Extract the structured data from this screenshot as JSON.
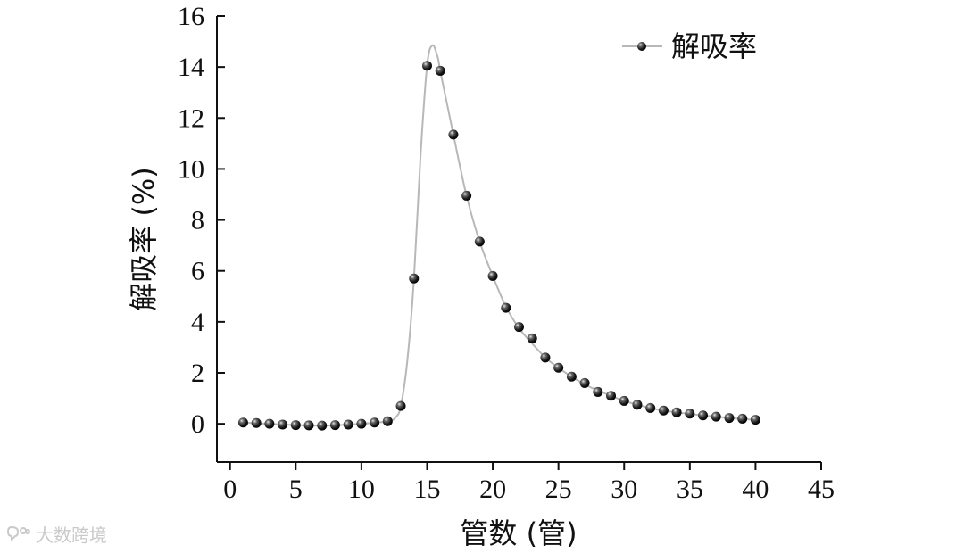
{
  "chart_data": {
    "type": "line",
    "xlabel": "管数 (管)",
    "ylabel": "解吸率 (%)",
    "xlim": [
      -1,
      45
    ],
    "ylim": [
      -1.5,
      16
    ],
    "xticks": [
      0,
      5,
      10,
      15,
      20,
      25,
      30,
      35,
      40,
      45
    ],
    "yticks": [
      0,
      2,
      4,
      6,
      8,
      10,
      12,
      14,
      16
    ],
    "legend_position": "top-right",
    "grid": false,
    "series": [
      {
        "name": "解吸率",
        "marker": "sphere",
        "line_color": "#b8b8b8",
        "marker_color": "#1a1a1a",
        "points": [
          {
            "x": 1,
            "y": 0.05
          },
          {
            "x": 2,
            "y": 0.03
          },
          {
            "x": 3,
            "y": 0.0
          },
          {
            "x": 4,
            "y": -0.03
          },
          {
            "x": 5,
            "y": -0.05
          },
          {
            "x": 6,
            "y": -0.06
          },
          {
            "x": 7,
            "y": -0.07
          },
          {
            "x": 8,
            "y": -0.05
          },
          {
            "x": 9,
            "y": -0.03
          },
          {
            "x": 10,
            "y": 0.0
          },
          {
            "x": 11,
            "y": 0.05
          },
          {
            "x": 12,
            "y": 0.1
          },
          {
            "x": 13,
            "y": 0.7
          },
          {
            "x": 14,
            "y": 5.7
          },
          {
            "x": 15,
            "y": 14.05
          },
          {
            "x": 16,
            "y": 13.85
          },
          {
            "x": 17,
            "y": 11.35
          },
          {
            "x": 18,
            "y": 8.95
          },
          {
            "x": 19,
            "y": 7.15
          },
          {
            "x": 20,
            "y": 5.8
          },
          {
            "x": 21,
            "y": 4.55
          },
          {
            "x": 22,
            "y": 3.8
          },
          {
            "x": 23,
            "y": 3.35
          },
          {
            "x": 24,
            "y": 2.6
          },
          {
            "x": 25,
            "y": 2.2
          },
          {
            "x": 26,
            "y": 1.85
          },
          {
            "x": 27,
            "y": 1.6
          },
          {
            "x": 28,
            "y": 1.25
          },
          {
            "x": 29,
            "y": 1.1
          },
          {
            "x": 30,
            "y": 0.9
          },
          {
            "x": 31,
            "y": 0.75
          },
          {
            "x": 32,
            "y": 0.62
          },
          {
            "x": 33,
            "y": 0.52
          },
          {
            "x": 34,
            "y": 0.45
          },
          {
            "x": 35,
            "y": 0.4
          },
          {
            "x": 36,
            "y": 0.33
          },
          {
            "x": 37,
            "y": 0.28
          },
          {
            "x": 38,
            "y": 0.23
          },
          {
            "x": 39,
            "y": 0.2
          },
          {
            "x": 40,
            "y": 0.16
          }
        ],
        "curve": [
          {
            "x": 1,
            "y": 0.05
          },
          {
            "x": 4,
            "y": -0.03
          },
          {
            "x": 7,
            "y": -0.07
          },
          {
            "x": 10,
            "y": 0.0
          },
          {
            "x": 12,
            "y": 0.1
          },
          {
            "x": 12.6,
            "y": 0.25
          },
          {
            "x": 13,
            "y": 0.7
          },
          {
            "x": 13.5,
            "y": 2.5
          },
          {
            "x": 14,
            "y": 5.7
          },
          {
            "x": 14.5,
            "y": 10.5
          },
          {
            "x": 15,
            "y": 14.05
          },
          {
            "x": 15.4,
            "y": 14.85
          },
          {
            "x": 15.8,
            "y": 14.4
          },
          {
            "x": 16,
            "y": 13.85
          },
          {
            "x": 16.5,
            "y": 12.6
          },
          {
            "x": 17,
            "y": 11.35
          },
          {
            "x": 18,
            "y": 8.95
          },
          {
            "x": 19,
            "y": 7.15
          },
          {
            "x": 20,
            "y": 5.8
          },
          {
            "x": 21,
            "y": 4.6
          },
          {
            "x": 22,
            "y": 3.75
          },
          {
            "x": 23,
            "y": 3.15
          },
          {
            "x": 24,
            "y": 2.6
          },
          {
            "x": 25,
            "y": 2.2
          },
          {
            "x": 26,
            "y": 1.85
          },
          {
            "x": 27,
            "y": 1.55
          },
          {
            "x": 28,
            "y": 1.3
          },
          {
            "x": 29,
            "y": 1.1
          },
          {
            "x": 30,
            "y": 0.9
          },
          {
            "x": 31,
            "y": 0.75
          },
          {
            "x": 32,
            "y": 0.62
          },
          {
            "x": 33,
            "y": 0.52
          },
          {
            "x": 34,
            "y": 0.45
          },
          {
            "x": 35,
            "y": 0.39
          },
          {
            "x": 36,
            "y": 0.33
          },
          {
            "x": 37,
            "y": 0.28
          },
          {
            "x": 38,
            "y": 0.23
          },
          {
            "x": 39,
            "y": 0.19
          },
          {
            "x": 40,
            "y": 0.16
          }
        ]
      }
    ]
  },
  "watermark": {
    "text": "大数跨境",
    "icon": "chat-bubble-icon"
  }
}
